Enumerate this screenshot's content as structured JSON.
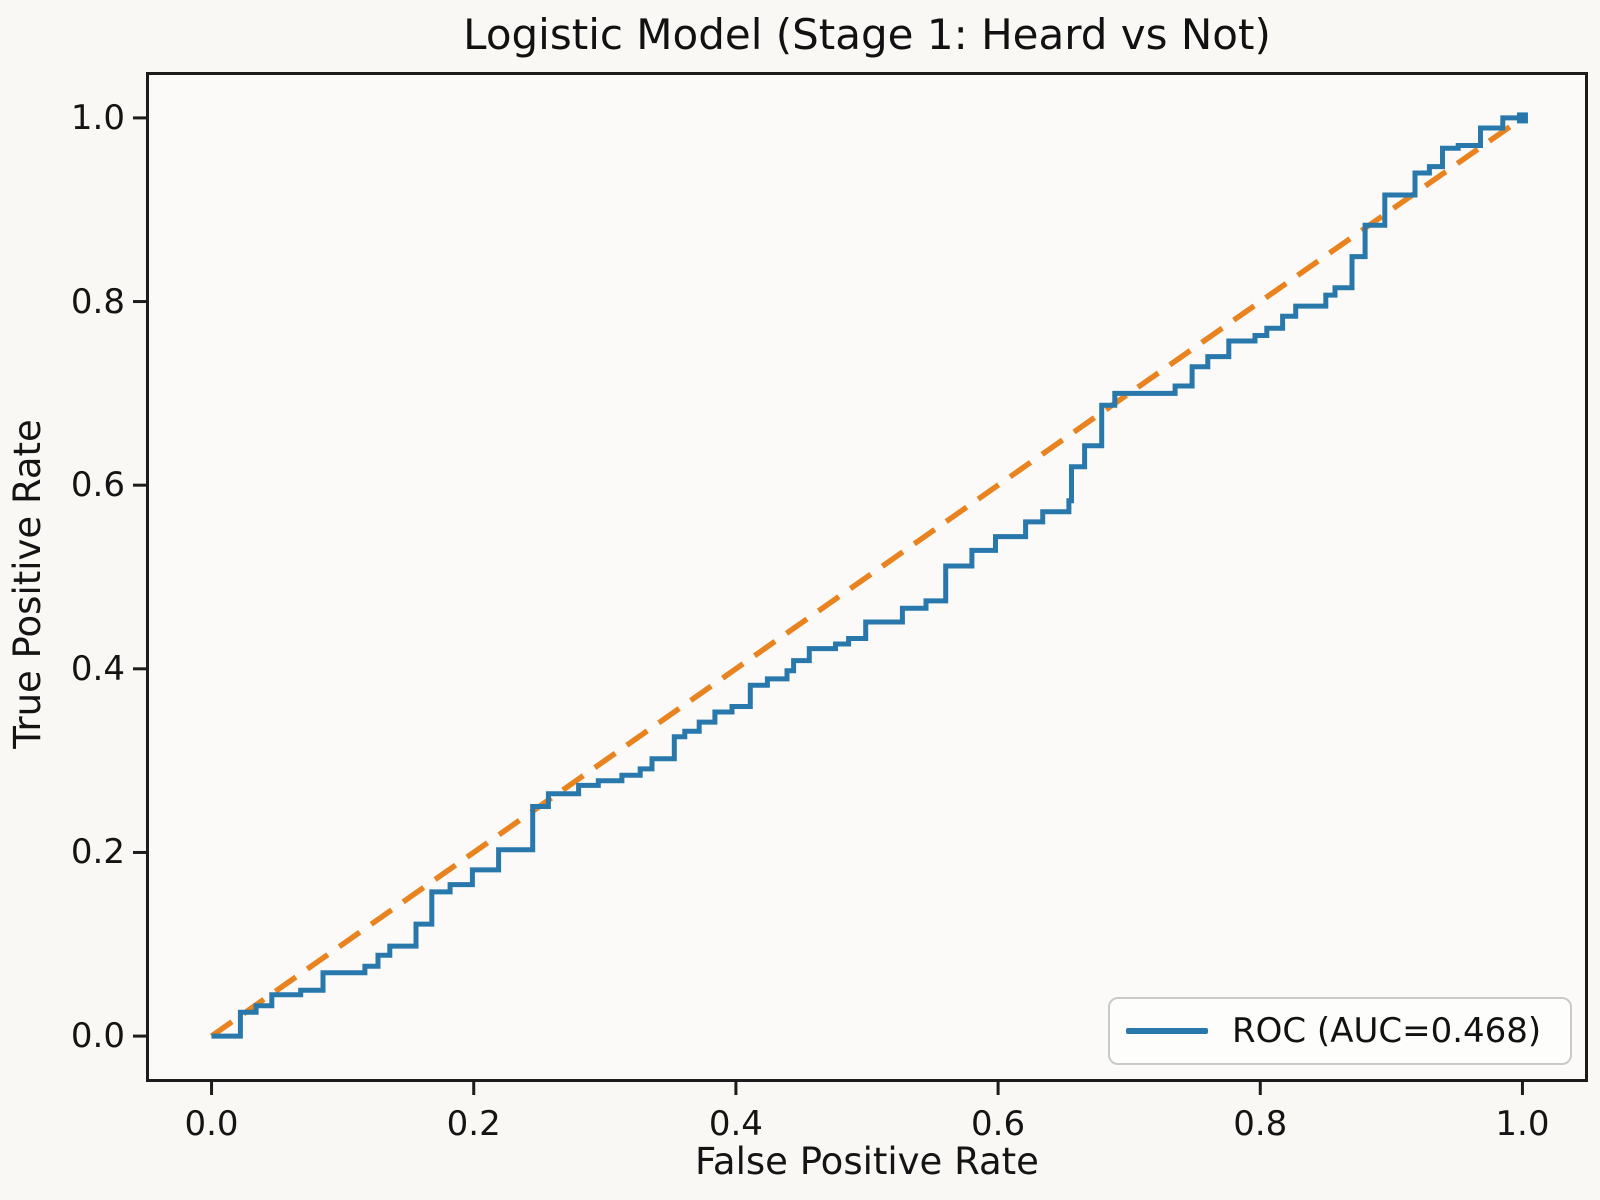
{
  "figure": {
    "title": "Logistic Model (Stage 1: Heard vs Not)",
    "xlabel": "False Positive Rate",
    "ylabel": "True Positive Rate",
    "legend_label": "ROC (AUC=0.468)"
  },
  "colors": {
    "roc_line": "#2878ac",
    "diagonal_line": "#e8831f",
    "axes_border": "#1c1c1c",
    "figure_background": "#f9f8f5",
    "axes_background": "#fbfaf8",
    "text": "#141414",
    "legend_border": "#c9c9c9"
  },
  "chart_data": {
    "type": "line",
    "title": "Logistic Model (Stage 1: Heard vs Not)",
    "xlabel": "False Positive Rate",
    "ylabel": "True Positive Rate",
    "xlim": [
      -0.05,
      1.05
    ],
    "ylim": [
      -0.05,
      1.05
    ],
    "x_tick_values": [
      0.0,
      0.2,
      0.4,
      0.6,
      0.8,
      1.0
    ],
    "x_tick_labels": [
      "0.0",
      "0.2",
      "0.4",
      "0.6",
      "0.8",
      "1.0"
    ],
    "y_tick_values": [
      0.0,
      0.2,
      0.4,
      0.6,
      0.8,
      1.0
    ],
    "y_tick_labels": [
      "0.0",
      "0.2",
      "0.4",
      "0.6",
      "0.8",
      "1.0"
    ],
    "grid": false,
    "legend_position": "lower right",
    "series": [
      {
        "name": "ROC (AUC=0.468)",
        "style": "solid-steps",
        "color": "#2878ac",
        "auc": 0.468,
        "end_marker": "square",
        "points": [
          [
            0.0,
            0.0
          ],
          [
            0.022,
            0.0
          ],
          [
            0.022,
            0.026
          ],
          [
            0.034,
            0.026
          ],
          [
            0.034,
            0.033
          ],
          [
            0.046,
            0.033
          ],
          [
            0.046,
            0.045
          ],
          [
            0.068,
            0.045
          ],
          [
            0.068,
            0.05
          ],
          [
            0.085,
            0.05
          ],
          [
            0.085,
            0.069
          ],
          [
            0.117,
            0.069
          ],
          [
            0.117,
            0.076
          ],
          [
            0.127,
            0.076
          ],
          [
            0.127,
            0.088
          ],
          [
            0.136,
            0.088
          ],
          [
            0.136,
            0.098
          ],
          [
            0.156,
            0.098
          ],
          [
            0.156,
            0.122
          ],
          [
            0.168,
            0.122
          ],
          [
            0.168,
            0.157
          ],
          [
            0.182,
            0.157
          ],
          [
            0.182,
            0.165
          ],
          [
            0.199,
            0.165
          ],
          [
            0.199,
            0.181
          ],
          [
            0.219,
            0.181
          ],
          [
            0.219,
            0.203
          ],
          [
            0.245,
            0.203
          ],
          [
            0.245,
            0.25
          ],
          [
            0.257,
            0.25
          ],
          [
            0.257,
            0.264
          ],
          [
            0.28,
            0.264
          ],
          [
            0.28,
            0.273
          ],
          [
            0.295,
            0.273
          ],
          [
            0.295,
            0.278
          ],
          [
            0.313,
            0.278
          ],
          [
            0.313,
            0.284
          ],
          [
            0.327,
            0.284
          ],
          [
            0.327,
            0.291
          ],
          [
            0.336,
            0.291
          ],
          [
            0.336,
            0.302
          ],
          [
            0.353,
            0.302
          ],
          [
            0.353,
            0.326
          ],
          [
            0.361,
            0.326
          ],
          [
            0.361,
            0.332
          ],
          [
            0.372,
            0.332
          ],
          [
            0.372,
            0.342
          ],
          [
            0.384,
            0.342
          ],
          [
            0.384,
            0.353
          ],
          [
            0.397,
            0.353
          ],
          [
            0.397,
            0.359
          ],
          [
            0.411,
            0.359
          ],
          [
            0.411,
            0.382
          ],
          [
            0.424,
            0.382
          ],
          [
            0.424,
            0.389
          ],
          [
            0.439,
            0.389
          ],
          [
            0.439,
            0.398
          ],
          [
            0.444,
            0.398
          ],
          [
            0.444,
            0.409
          ],
          [
            0.456,
            0.409
          ],
          [
            0.456,
            0.422
          ],
          [
            0.476,
            0.422
          ],
          [
            0.476,
            0.427
          ],
          [
            0.486,
            0.427
          ],
          [
            0.486,
            0.433
          ],
          [
            0.499,
            0.433
          ],
          [
            0.499,
            0.451
          ],
          [
            0.527,
            0.451
          ],
          [
            0.527,
            0.466
          ],
          [
            0.545,
            0.466
          ],
          [
            0.545,
            0.474
          ],
          [
            0.56,
            0.474
          ],
          [
            0.56,
            0.512
          ],
          [
            0.58,
            0.512
          ],
          [
            0.58,
            0.529
          ],
          [
            0.598,
            0.529
          ],
          [
            0.598,
            0.544
          ],
          [
            0.621,
            0.544
          ],
          [
            0.621,
            0.56
          ],
          [
            0.634,
            0.56
          ],
          [
            0.634,
            0.571
          ],
          [
            0.654,
            0.571
          ],
          [
            0.654,
            0.583
          ],
          [
            0.656,
            0.583
          ],
          [
            0.656,
            0.62
          ],
          [
            0.666,
            0.62
          ],
          [
            0.666,
            0.643
          ],
          [
            0.679,
            0.643
          ],
          [
            0.679,
            0.687
          ],
          [
            0.689,
            0.687
          ],
          [
            0.689,
            0.7
          ],
          [
            0.735,
            0.7
          ],
          [
            0.735,
            0.708
          ],
          [
            0.748,
            0.708
          ],
          [
            0.748,
            0.729
          ],
          [
            0.76,
            0.729
          ],
          [
            0.76,
            0.74
          ],
          [
            0.776,
            0.74
          ],
          [
            0.776,
            0.757
          ],
          [
            0.796,
            0.757
          ],
          [
            0.796,
            0.763
          ],
          [
            0.805,
            0.763
          ],
          [
            0.805,
            0.771
          ],
          [
            0.817,
            0.771
          ],
          [
            0.817,
            0.784
          ],
          [
            0.827,
            0.784
          ],
          [
            0.827,
            0.795
          ],
          [
            0.85,
            0.795
          ],
          [
            0.85,
            0.807
          ],
          [
            0.857,
            0.807
          ],
          [
            0.857,
            0.815
          ],
          [
            0.87,
            0.815
          ],
          [
            0.87,
            0.849
          ],
          [
            0.88,
            0.849
          ],
          [
            0.88,
            0.883
          ],
          [
            0.895,
            0.883
          ],
          [
            0.895,
            0.916
          ],
          [
            0.918,
            0.916
          ],
          [
            0.918,
            0.94
          ],
          [
            0.929,
            0.94
          ],
          [
            0.929,
            0.947
          ],
          [
            0.939,
            0.947
          ],
          [
            0.939,
            0.967
          ],
          [
            0.951,
            0.967
          ],
          [
            0.951,
            0.97
          ],
          [
            0.968,
            0.97
          ],
          [
            0.968,
            0.989
          ],
          [
            0.985,
            0.989
          ],
          [
            0.985,
            1.0
          ],
          [
            1.0,
            1.0
          ]
        ]
      },
      {
        "name": "chance-diagonal",
        "style": "dashed",
        "color": "#e8831f",
        "points": [
          [
            0.0,
            0.0
          ],
          [
            1.0,
            1.0
          ]
        ]
      }
    ]
  }
}
